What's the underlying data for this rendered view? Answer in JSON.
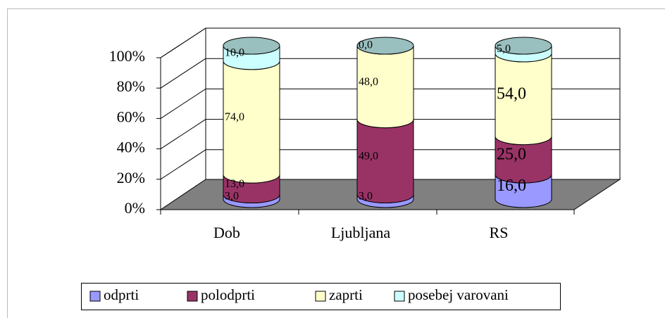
{
  "chart_data": {
    "type": "bar3d-cylinder-stacked",
    "categories": [
      "Dob",
      "Ljubljana",
      "RS"
    ],
    "series": [
      {
        "name": "odprti",
        "color": "#9999ff",
        "values": [
          3.0,
          3.0,
          16.0
        ],
        "value_labels": [
          "3,0",
          "3,0",
          "16,0"
        ]
      },
      {
        "name": "polodprti",
        "color": "#993366",
        "values": [
          13.0,
          49.0,
          25.0
        ],
        "value_labels": [
          "13,0",
          "49,0",
          "25,0"
        ]
      },
      {
        "name": "zaprti",
        "color": "#ffffcc",
        "values": [
          74.0,
          48.0,
          54.0
        ],
        "value_labels": [
          "74,0",
          "48,0",
          "54,0"
        ]
      },
      {
        "name": "posebej varovani",
        "color": "#ccffff",
        "values": [
          10.0,
          0.0,
          5.0
        ],
        "value_labels": [
          "10,0",
          "0,0",
          "5,0"
        ]
      }
    ],
    "ylim": [
      0,
      100
    ],
    "yticks": [
      {
        "value": 0,
        "label": "0%"
      },
      {
        "value": 20,
        "label": "20%"
      },
      {
        "value": 40,
        "label": "40%"
      },
      {
        "value": 60,
        "label": "60%"
      },
      {
        "value": 80,
        "label": "80%"
      },
      {
        "value": 100,
        "label": "100%"
      }
    ],
    "grid": true,
    "legend": "bottom"
  }
}
